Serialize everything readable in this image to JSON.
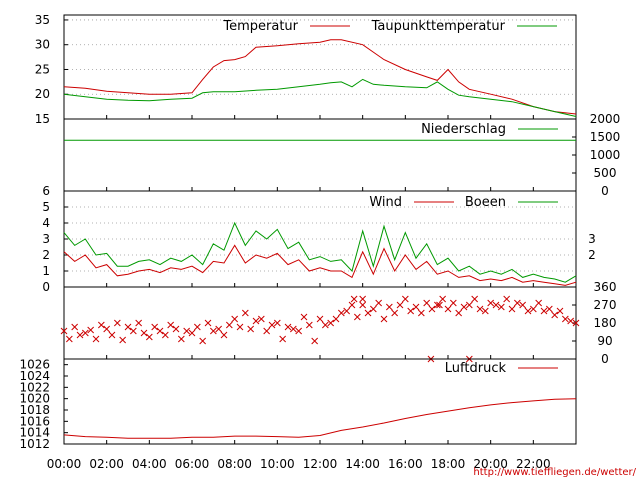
{
  "colors": {
    "primary": "#cc0000",
    "secondary": "#009900",
    "frame": "#000000",
    "grid": "#999999"
  },
  "credit": "http://www.tiefflie​gen.de/wetter/",
  "x_tick_labels": [
    "00:00",
    "02:00",
    "04:00",
    "06:00",
    "08:00",
    "10:00",
    "12:00",
    "14:00",
    "16:00",
    "18:00",
    "20:00",
    "22:00"
  ],
  "chart_data": [
    {
      "type": "line",
      "x_range_hours": [
        0,
        24
      ],
      "ylim": [
        15,
        36
      ],
      "y_ticks": [
        15,
        20,
        25,
        30,
        35
      ],
      "grid": true,
      "legend_placement": "top-right",
      "series": [
        {
          "name": "Temperatur",
          "color": "#cc0000",
          "x": [
            0,
            1,
            2,
            3,
            4,
            5,
            6,
            6.5,
            7,
            7.5,
            8,
            8.5,
            9,
            10,
            11,
            12,
            12.5,
            13,
            14,
            14.5,
            15,
            16,
            17,
            17.5,
            18,
            18.5,
            19,
            20,
            21,
            22,
            23,
            24
          ],
          "y": [
            21.5,
            21.2,
            20.6,
            20.3,
            20.0,
            20.0,
            20.3,
            23.0,
            25.5,
            26.8,
            27.0,
            27.6,
            29.5,
            29.8,
            30.2,
            30.5,
            31.0,
            31.0,
            30.0,
            28.5,
            27.0,
            25.0,
            23.5,
            22.8,
            25.0,
            22.5,
            21.0,
            20.0,
            19.0,
            17.5,
            16.5,
            16.0
          ]
        },
        {
          "name": "Taupunkttemperatur",
          "color": "#009900",
          "x": [
            0,
            1,
            2,
            3,
            4,
            5,
            6,
            6.5,
            7,
            8,
            9,
            10,
            11,
            12,
            12.5,
            13,
            13.5,
            14,
            14.5,
            15,
            16,
            17,
            17.5,
            18,
            18.5,
            19,
            20,
            21,
            22,
            23,
            24
          ],
          "y": [
            20.0,
            19.5,
            19.0,
            18.8,
            18.7,
            19.0,
            19.2,
            20.3,
            20.5,
            20.5,
            20.8,
            21.0,
            21.5,
            22.0,
            22.3,
            22.5,
            21.5,
            23.0,
            22.0,
            21.8,
            21.5,
            21.3,
            22.5,
            21.0,
            19.8,
            19.5,
            19.0,
            18.5,
            17.5,
            16.5,
            15.5
          ]
        }
      ]
    },
    {
      "type": "line",
      "x_range_hours": [
        0,
        24
      ],
      "ylim": [
        0,
        2000
      ],
      "y_ticks": [
        0,
        500,
        1000,
        1500,
        2000
      ],
      "y_axis_side": "right",
      "grid": false,
      "legend_placement": "top-right",
      "series": [
        {
          "name": "Niederschlag",
          "color": "#009900",
          "x": [
            0,
            24
          ],
          "y": [
            1410,
            1410
          ]
        }
      ]
    },
    {
      "type": "line",
      "x_range_hours": [
        0,
        24
      ],
      "ylim": [
        0,
        6
      ],
      "y_ticks": [
        0,
        1,
        2,
        3,
        4,
        5,
        6
      ],
      "y2_ticks": [
        2,
        3
      ],
      "grid": true,
      "legend_placement": "top-right",
      "series": [
        {
          "name": "Wind",
          "color": "#cc0000",
          "x": [
            0,
            0.5,
            1,
            1.5,
            2,
            2.5,
            3,
            3.5,
            4,
            4.5,
            5,
            5.5,
            6,
            6.5,
            7,
            7.5,
            8,
            8.5,
            9,
            9.5,
            10,
            10.5,
            11,
            11.5,
            12,
            12.5,
            13,
            13.5,
            14,
            14.5,
            15,
            15.5,
            16,
            16.5,
            17,
            17.5,
            18,
            18.5,
            19,
            19.5,
            20,
            20.5,
            21,
            21.5,
            22,
            22.5,
            23,
            23.5,
            24
          ],
          "y": [
            2.2,
            1.6,
            2.0,
            1.2,
            1.4,
            0.7,
            0.8,
            1.0,
            1.1,
            0.9,
            1.2,
            1.1,
            1.3,
            0.9,
            1.6,
            1.5,
            2.6,
            1.5,
            2.0,
            1.8,
            2.1,
            1.4,
            1.7,
            1.0,
            1.2,
            1.0,
            1.0,
            0.6,
            2.2,
            0.8,
            2.4,
            1.0,
            2.0,
            1.1,
            1.6,
            0.8,
            1.0,
            0.6,
            0.7,
            0.4,
            0.5,
            0.4,
            0.6,
            0.3,
            0.4,
            0.3,
            0.2,
            0.1,
            0.3
          ]
        },
        {
          "name": "Boeen",
          "color": "#009900",
          "x": [
            0,
            0.5,
            1,
            1.5,
            2,
            2.5,
            3,
            3.5,
            4,
            4.5,
            5,
            5.5,
            6,
            6.5,
            7,
            7.5,
            8,
            8.5,
            9,
            9.5,
            10,
            10.5,
            11,
            11.5,
            12,
            12.5,
            13,
            13.5,
            14,
            14.5,
            15,
            15.5,
            16,
            16.5,
            17,
            17.5,
            18,
            18.5,
            19,
            19.5,
            20,
            20.5,
            21,
            21.5,
            22,
            22.5,
            23,
            23.5,
            24
          ],
          "y": [
            3.4,
            2.6,
            3.0,
            2.0,
            2.1,
            1.3,
            1.3,
            1.6,
            1.7,
            1.4,
            1.8,
            1.6,
            2.0,
            1.4,
            2.7,
            2.3,
            4.0,
            2.6,
            3.5,
            3.0,
            3.6,
            2.4,
            2.8,
            1.7,
            1.9,
            1.6,
            1.7,
            1.0,
            3.5,
            1.3,
            3.8,
            1.7,
            3.4,
            1.8,
            2.7,
            1.4,
            1.8,
            1.0,
            1.3,
            0.8,
            1.0,
            0.8,
            1.1,
            0.6,
            0.8,
            0.6,
            0.5,
            0.3,
            0.7
          ]
        }
      ]
    },
    {
      "type": "scatter",
      "x_range_hours": [
        0,
        24
      ],
      "ylim": [
        0,
        360
      ],
      "y_ticks": [
        0,
        90,
        180,
        270,
        360
      ],
      "y_axis_side": "right",
      "series": [
        {
          "color": "#cc0000",
          "x": [
            0,
            0.25,
            0.5,
            0.75,
            1,
            1.25,
            1.5,
            1.75,
            2,
            2.25,
            2.5,
            2.75,
            3,
            3.25,
            3.5,
            3.75,
            4,
            4.25,
            4.5,
            4.75,
            5,
            5.25,
            5.5,
            5.75,
            6,
            6.25,
            6.5,
            6.75,
            7,
            7.25,
            7.5,
            7.75,
            8,
            8.25,
            8.5,
            8.75,
            9,
            9.25,
            9.5,
            9.75,
            10,
            10.25,
            10.5,
            10.75,
            11,
            11.25,
            11.5,
            11.75,
            12,
            12.25,
            12.5,
            12.75,
            13,
            13.25,
            13.5,
            13.75,
            14,
            14.25,
            14.5,
            14.75,
            15,
            15.25,
            15.5,
            15.75,
            16,
            16.25,
            16.5,
            16.75,
            17,
            17.25,
            17.5,
            17.75,
            18,
            18.25,
            18.5,
            18.75,
            19,
            19.25,
            19.5,
            19.75,
            20,
            20.25,
            20.5,
            20.75,
            21,
            21.25,
            21.5,
            21.75,
            22,
            22.25,
            22.5,
            22.75,
            23,
            23.25,
            23.5,
            23.75,
            24,
            17.2,
            19.0,
            17.6,
            13.6,
            14.0
          ],
          "y": [
            140,
            100,
            160,
            120,
            130,
            145,
            100,
            170,
            150,
            120,
            180,
            95,
            160,
            140,
            180,
            130,
            110,
            160,
            140,
            120,
            170,
            150,
            100,
            140,
            130,
            160,
            90,
            180,
            140,
            150,
            120,
            170,
            200,
            160,
            230,
            150,
            190,
            200,
            140,
            170,
            180,
            100,
            160,
            150,
            140,
            210,
            170,
            90,
            200,
            170,
            180,
            200,
            230,
            240,
            270,
            210,
            300,
            230,
            250,
            280,
            200,
            260,
            230,
            270,
            300,
            240,
            260,
            230,
            280,
            250,
            270,
            300,
            250,
            280,
            230,
            260,
            270,
            300,
            250,
            240,
            280,
            270,
            260,
            300,
            250,
            280,
            270,
            240,
            250,
            280,
            240,
            250,
            220,
            240,
            200,
            190,
            180,
            0,
            0,
            270,
            300,
            270
          ]
        }
      ]
    },
    {
      "type": "line",
      "x_range_hours": [
        0,
        24
      ],
      "ylim": [
        1012,
        1027
      ],
      "y_ticks": [
        1012,
        1014,
        1016,
        1018,
        1020,
        1022,
        1024,
        1026
      ],
      "grid": false,
      "legend_placement": "top-right",
      "series": [
        {
          "name": "Luftdruck",
          "color": "#cc0000",
          "x": [
            0,
            1,
            2,
            3,
            4,
            5,
            6,
            7,
            8,
            9,
            10,
            11,
            12,
            13,
            14,
            15,
            16,
            17,
            18,
            19,
            20,
            21,
            22,
            23,
            24
          ],
          "y": [
            1013.6,
            1013.3,
            1013.2,
            1013.0,
            1013.0,
            1013.0,
            1013.2,
            1013.2,
            1013.4,
            1013.4,
            1013.3,
            1013.2,
            1013.5,
            1014.4,
            1015.0,
            1015.7,
            1016.5,
            1017.2,
            1017.8,
            1018.4,
            1018.9,
            1019.3,
            1019.6,
            1019.9,
            1020.0
          ]
        }
      ]
    }
  ]
}
